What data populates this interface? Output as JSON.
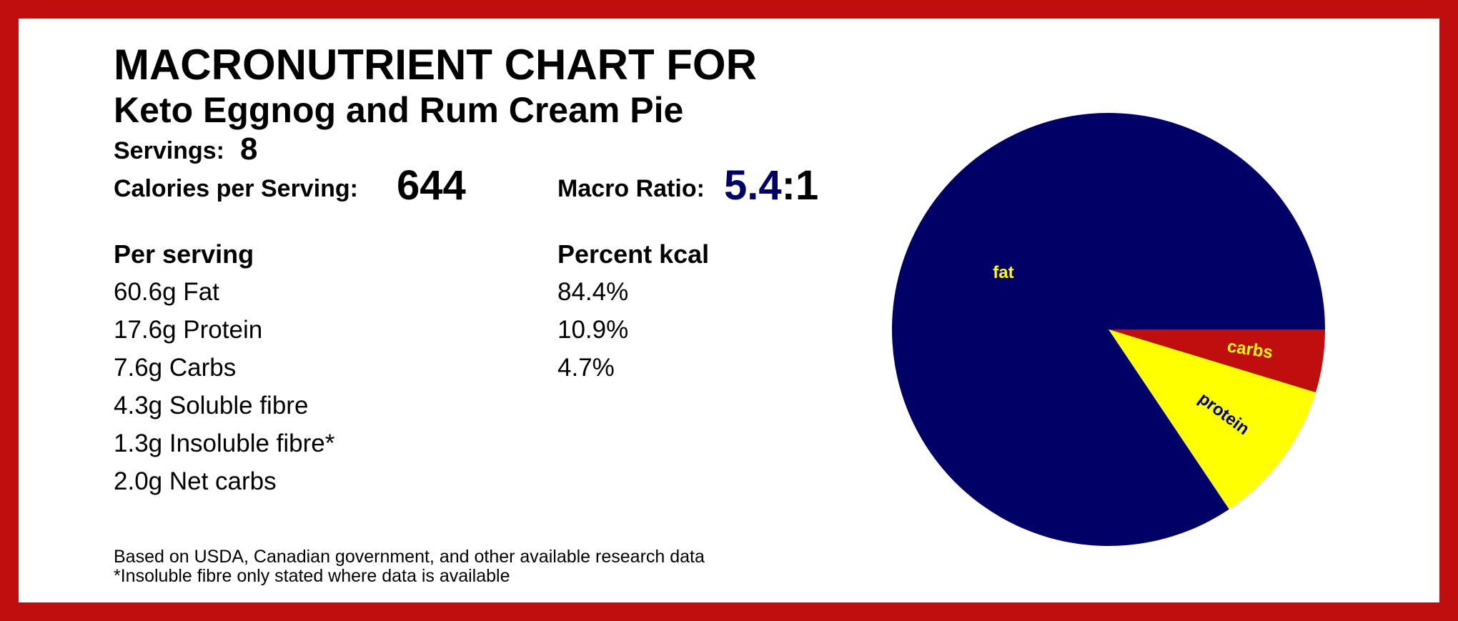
{
  "header": {
    "title_line1": "MACRONUTRIENT CHART FOR",
    "title_line2": "Keto Eggnog and Rum Cream Pie"
  },
  "summary": {
    "servings_label": "Servings:",
    "servings_value": "8",
    "calories_label": "Calories per Serving:",
    "calories_value": "644",
    "ratio_label": "Macro Ratio:",
    "ratio_number": "5.4",
    "ratio_suffix": ":1"
  },
  "per_serving": {
    "heading": "Per serving",
    "items": [
      "60.6g Fat",
      "17.6g Protein",
      "7.6g Carbs",
      "4.3g Soluble fibre",
      "1.3g Insoluble fibre*",
      "2.0g Net carbs"
    ]
  },
  "percent_kcal": {
    "heading": "Percent kcal",
    "items": [
      "84.4%",
      "10.9%",
      "4.7%"
    ]
  },
  "footnotes": [
    "Based on USDA, Canadian government, and other available research data",
    "*Insoluble fibre only stated where data is available"
  ],
  "colors": {
    "border": "#c00d0d",
    "ratio_accent": "#000066"
  },
  "chart_data": {
    "type": "pie",
    "title": "",
    "slices": [
      {
        "label": "carbs",
        "value": 4.7,
        "color": "#c00d0d",
        "label_color": "#ffff00"
      },
      {
        "label": "protein",
        "value": 10.9,
        "color": "#ffff00",
        "label_color": "#000066"
      },
      {
        "label": "fat",
        "value": 84.4,
        "color": "#000066",
        "label_color": "#ffff00"
      }
    ],
    "start_angle_deg": 0,
    "direction": "clockwise"
  }
}
